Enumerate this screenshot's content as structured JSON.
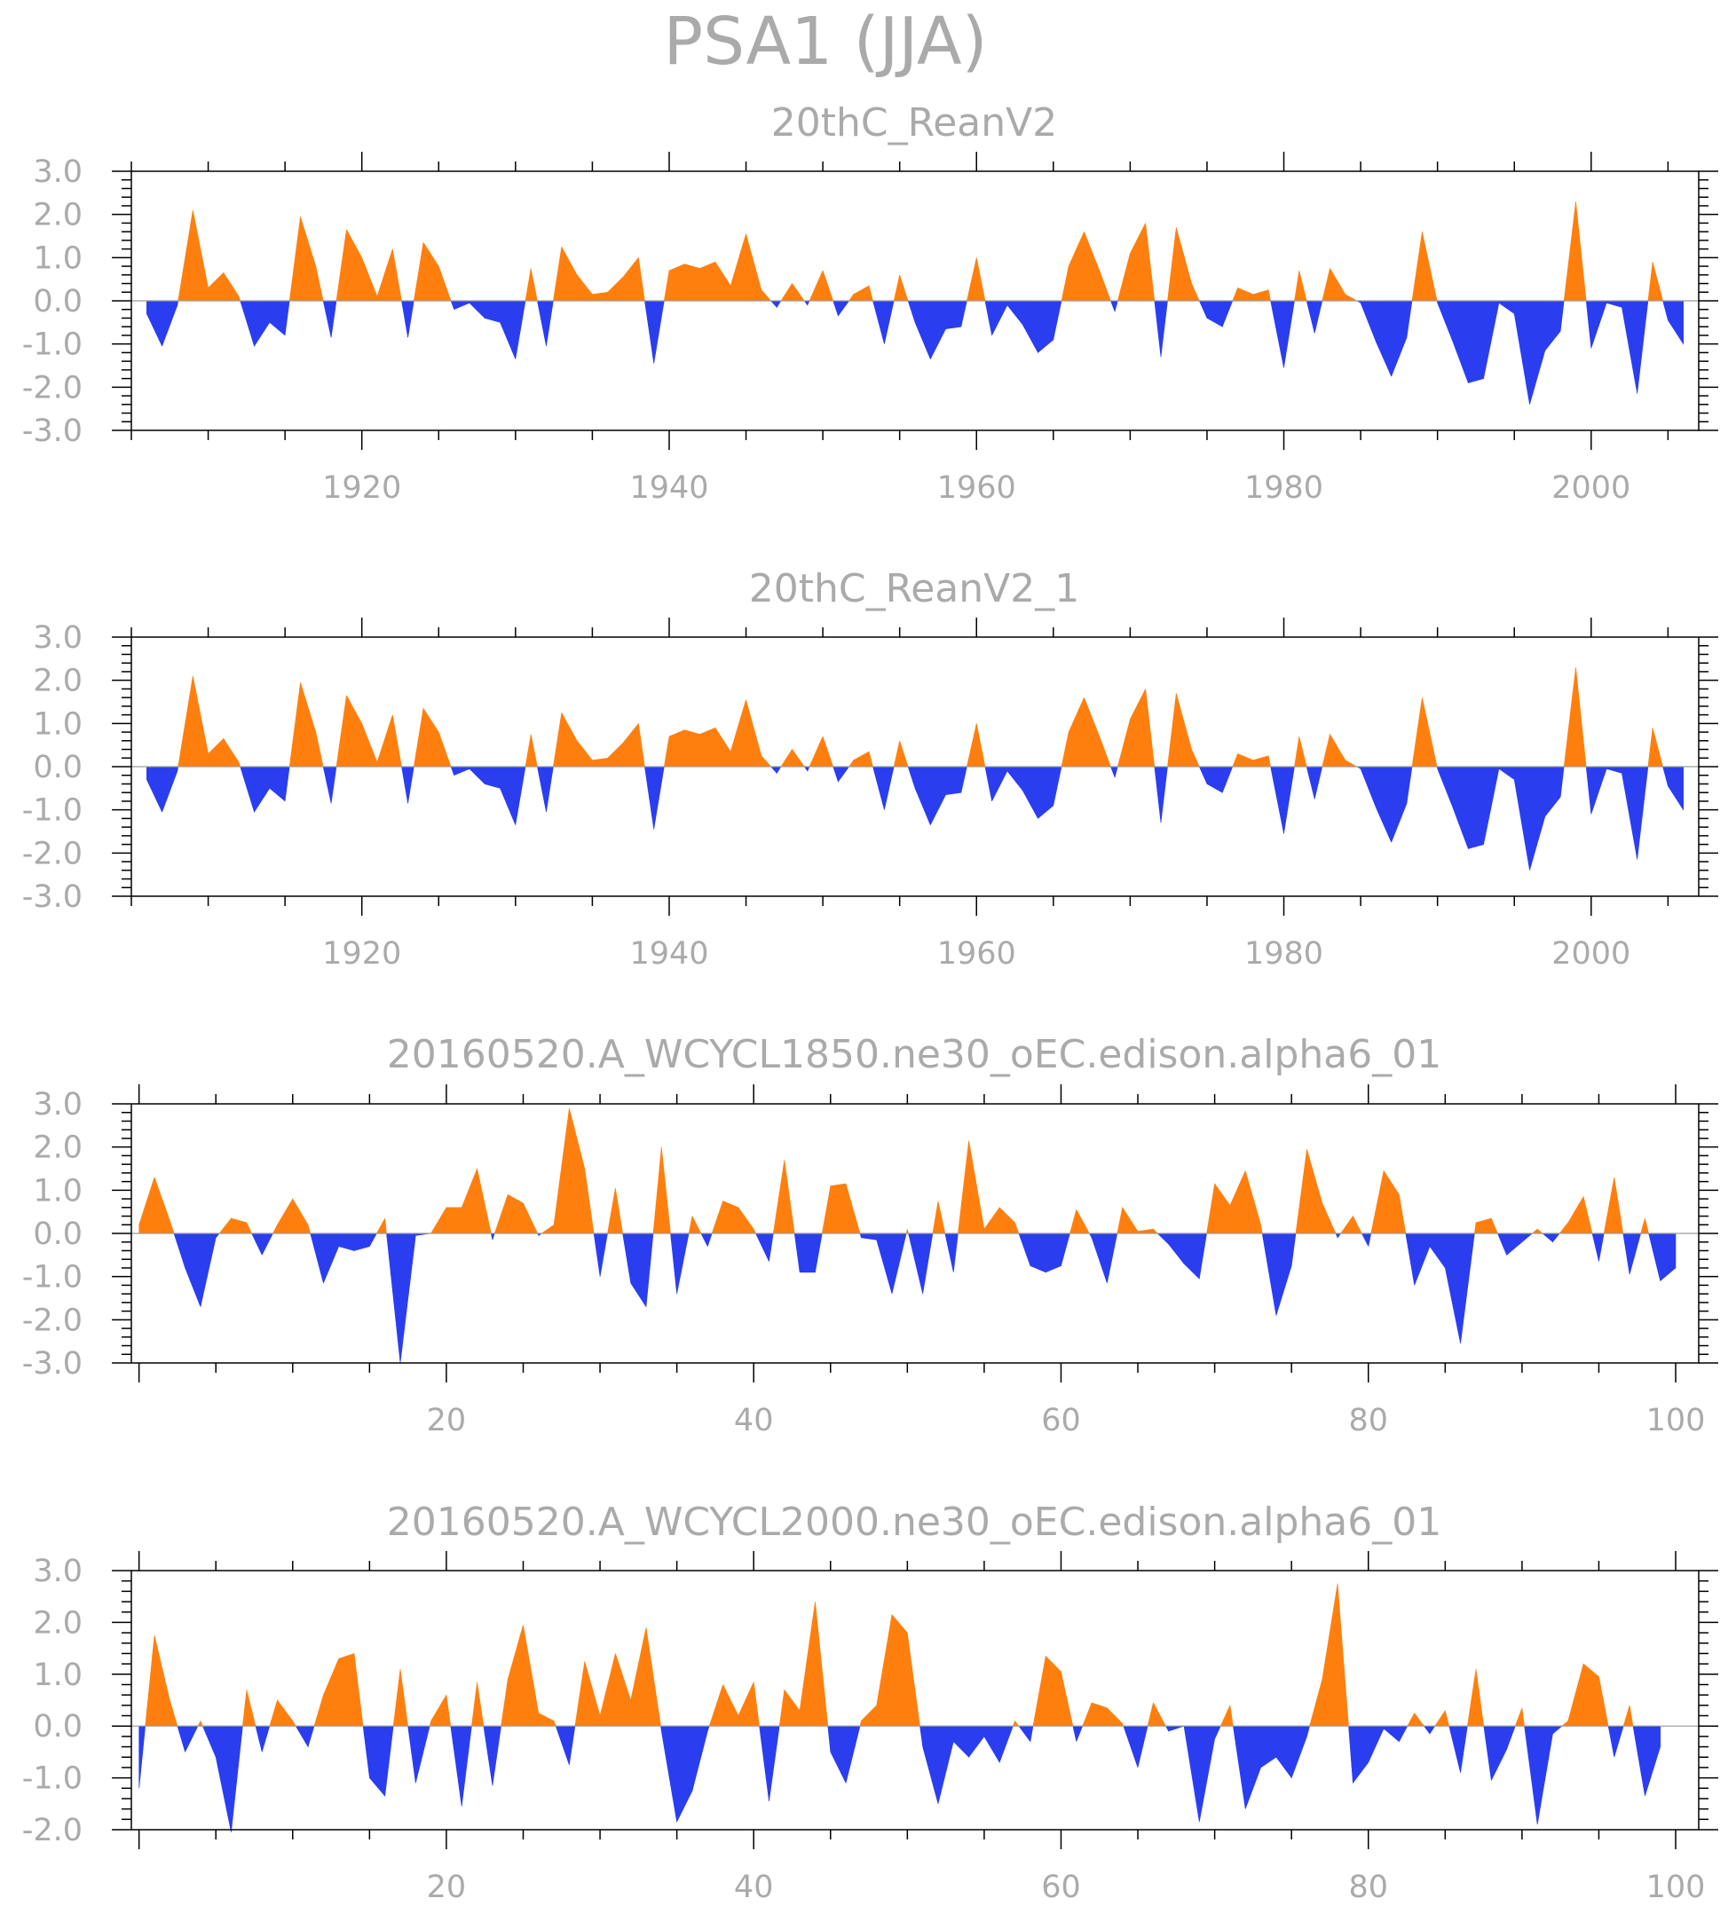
{
  "title": "PSA1 (JJA)",
  "colors": {
    "positive": "#ff7f0e",
    "negative": "#2a3ef0",
    "text": "#aaaaaa",
    "zero_line": "#9a9a9a"
  },
  "chart_data": [
    {
      "type": "area",
      "title": "20thC_ReanV2",
      "xlabel": "",
      "ylabel": "",
      "xlim": [
        1905,
        2007
      ],
      "ylim": [
        -3.0,
        3.0
      ],
      "xticks": [
        1920,
        1940,
        1960,
        1980,
        2000
      ],
      "yticks": [
        -3.0,
        -2.0,
        -1.0,
        0.0,
        1.0,
        2.0,
        3.0
      ],
      "ytick_labels": [
        "-3.0",
        "-2.0",
        "-1.0",
        "0.0",
        "1.0",
        "2.0",
        "3.0"
      ],
      "x_start": 1906,
      "values": [
        -0.3,
        -1.05,
        -0.1,
        2.1,
        0.3,
        0.65,
        0.1,
        -1.05,
        -0.5,
        -0.8,
        1.95,
        0.8,
        -0.85,
        1.65,
        1.0,
        0.1,
        1.2,
        -0.85,
        1.35,
        0.8,
        -0.2,
        -0.05,
        -0.4,
        -0.5,
        -1.35,
        0.75,
        -1.05,
        1.25,
        0.6,
        0.15,
        0.2,
        0.55,
        1.0,
        -1.45,
        0.7,
        0.85,
        0.75,
        0.9,
        0.35,
        1.55,
        0.25,
        -0.15,
        0.4,
        -0.1,
        0.7,
        -0.35,
        0.15,
        0.35,
        -1.0,
        0.6,
        -0.5,
        -1.35,
        -0.65,
        -0.6,
        1.0,
        -0.8,
        -0.1,
        -0.55,
        -1.2,
        -0.9,
        0.8,
        1.6,
        0.7,
        -0.25,
        1.1,
        1.8,
        -1.3,
        1.7,
        0.4,
        -0.4,
        -0.6,
        0.3,
        0.15,
        0.25,
        -1.55,
        0.7,
        -0.75,
        0.75,
        0.15,
        -0.05,
        -0.95,
        -1.75,
        -0.85,
        1.6,
        -0.05,
        -0.95,
        -1.9,
        -1.8,
        -0.05,
        -0.3,
        -2.4,
        -1.15,
        -0.7,
        2.3,
        -1.1,
        -0.05,
        -0.15,
        -2.15,
        0.9,
        -0.45,
        -1.0
      ]
    },
    {
      "type": "area",
      "title": "20thC_ReanV2_1",
      "xlabel": "",
      "ylabel": "",
      "xlim": [
        1905,
        2007
      ],
      "ylim": [
        -3.0,
        3.0
      ],
      "xticks": [
        1920,
        1940,
        1960,
        1980,
        2000
      ],
      "yticks": [
        -3.0,
        -2.0,
        -1.0,
        0.0,
        1.0,
        2.0,
        3.0
      ],
      "ytick_labels": [
        "-3.0",
        "-2.0",
        "-1.0",
        "0.0",
        "1.0",
        "2.0",
        "3.0"
      ],
      "x_start": 1906,
      "values": [
        -0.3,
        -1.05,
        -0.1,
        2.1,
        0.3,
        0.65,
        0.1,
        -1.05,
        -0.5,
        -0.8,
        1.95,
        0.8,
        -0.85,
        1.65,
        1.0,
        0.1,
        1.2,
        -0.85,
        1.35,
        0.8,
        -0.2,
        -0.05,
        -0.4,
        -0.5,
        -1.35,
        0.75,
        -1.05,
        1.25,
        0.6,
        0.15,
        0.2,
        0.55,
        1.0,
        -1.45,
        0.7,
        0.85,
        0.75,
        0.9,
        0.35,
        1.55,
        0.25,
        -0.15,
        0.4,
        -0.1,
        0.7,
        -0.35,
        0.15,
        0.35,
        -1.0,
        0.6,
        -0.5,
        -1.35,
        -0.65,
        -0.6,
        1.0,
        -0.8,
        -0.1,
        -0.55,
        -1.2,
        -0.9,
        0.8,
        1.6,
        0.7,
        -0.25,
        1.1,
        1.8,
        -1.3,
        1.7,
        0.4,
        -0.4,
        -0.6,
        0.3,
        0.15,
        0.25,
        -1.55,
        0.7,
        -0.75,
        0.75,
        0.15,
        -0.05,
        -0.95,
        -1.75,
        -0.85,
        1.6,
        -0.05,
        -0.95,
        -1.9,
        -1.8,
        -0.05,
        -0.3,
        -2.4,
        -1.15,
        -0.7,
        2.3,
        -1.1,
        -0.05,
        -0.15,
        -2.15,
        0.9,
        -0.45,
        -1.0
      ]
    },
    {
      "type": "area",
      "title": "20160520.A_WCYCL1850.ne30_oEC.edison.alpha6_01",
      "xlabel": "",
      "ylabel": "",
      "xlim": [
        -0.5,
        101.5
      ],
      "ylim": [
        -3.0,
        3.0
      ],
      "xticks": [
        20,
        40,
        60,
        80,
        100
      ],
      "yticks": [
        -3.0,
        -2.0,
        -1.0,
        0.0,
        1.0,
        2.0,
        3.0
      ],
      "ytick_labels": [
        "-3.0",
        "-2.0",
        "-1.0",
        "0.0",
        "1.0",
        "2.0",
        "3.0"
      ],
      "x_start": 0,
      "values": [
        0.2,
        1.3,
        0.3,
        -0.8,
        -1.7,
        -0.1,
        0.35,
        0.25,
        -0.5,
        0.2,
        0.8,
        0.2,
        -1.15,
        -0.3,
        -0.4,
        -0.3,
        0.35,
        -3.0,
        -0.05,
        0.0,
        0.6,
        0.6,
        1.5,
        -0.15,
        0.9,
        0.7,
        -0.05,
        0.2,
        2.9,
        1.5,
        -1.0,
        1.05,
        -1.15,
        -1.7,
        2.0,
        -1.4,
        0.4,
        -0.3,
        0.75,
        0.6,
        0.1,
        -0.65,
        1.7,
        -0.9,
        -0.9,
        1.1,
        1.15,
        -0.1,
        -0.15,
        -1.4,
        0.1,
        -1.4,
        0.75,
        -0.9,
        2.15,
        0.1,
        0.6,
        0.25,
        -0.75,
        -0.9,
        -0.75,
        0.55,
        -0.1,
        -1.15,
        0.6,
        0.05,
        0.1,
        -0.25,
        -0.7,
        -1.05,
        1.15,
        0.65,
        1.45,
        0.2,
        -1.9,
        -0.75,
        1.95,
        0.7,
        -0.1,
        0.4,
        -0.3,
        1.45,
        0.9,
        -1.2,
        -0.3,
        -0.8,
        -2.55,
        0.25,
        0.35,
        -0.5,
        -0.2,
        0.1,
        -0.2,
        0.25,
        0.85,
        -0.65,
        1.3,
        -0.95,
        0.35,
        -1.1,
        -0.8
      ]
    },
    {
      "type": "area",
      "title": "20160520.A_WCYCL2000.ne30_oEC.edison.alpha6_01",
      "xlabel": "",
      "ylabel": "",
      "xlim": [
        -0.5,
        101.5
      ],
      "ylim": [
        -2.0,
        3.0
      ],
      "xticks": [
        20,
        40,
        60,
        80,
        100
      ],
      "yticks": [
        -2.0,
        -1.0,
        0.0,
        1.0,
        2.0,
        3.0
      ],
      "ytick_labels": [
        "-2.0",
        "-1.0",
        "0.0",
        "1.0",
        "2.0",
        "3.0"
      ],
      "x_start": 0,
      "values": [
        -1.2,
        1.75,
        0.5,
        -0.5,
        0.1,
        -0.6,
        -2.05,
        0.7,
        -0.5,
        0.5,
        0.1,
        -0.4,
        0.6,
        1.3,
        1.4,
        -1.0,
        -1.35,
        1.1,
        -1.1,
        0.1,
        0.6,
        -1.55,
        0.85,
        -1.15,
        0.9,
        1.95,
        0.25,
        0.1,
        -0.75,
        1.25,
        0.2,
        1.4,
        0.5,
        1.9,
        -0.1,
        -1.85,
        -1.25,
        -0.1,
        0.8,
        0.2,
        0.85,
        -1.45,
        0.7,
        0.3,
        2.4,
        -0.5,
        -1.1,
        0.1,
        0.4,
        2.15,
        1.8,
        -0.4,
        -1.5,
        -0.3,
        -0.6,
        -0.2,
        -0.7,
        0.1,
        -0.3,
        1.35,
        1.05,
        -0.3,
        0.45,
        0.35,
        0.05,
        -0.8,
        0.45,
        -0.1,
        0.0,
        -1.85,
        -0.25,
        0.4,
        -1.6,
        -0.8,
        -0.6,
        -1.0,
        -0.2,
        0.9,
        2.75,
        -1.1,
        -0.7,
        -0.05,
        -0.3,
        0.25,
        -0.15,
        0.3,
        -0.9,
        1.1,
        -1.05,
        -0.45,
        0.35,
        -1.9,
        -0.15,
        0.1,
        1.2,
        0.95,
        -0.6,
        0.4,
        -1.35,
        -0.4
      ]
    }
  ]
}
